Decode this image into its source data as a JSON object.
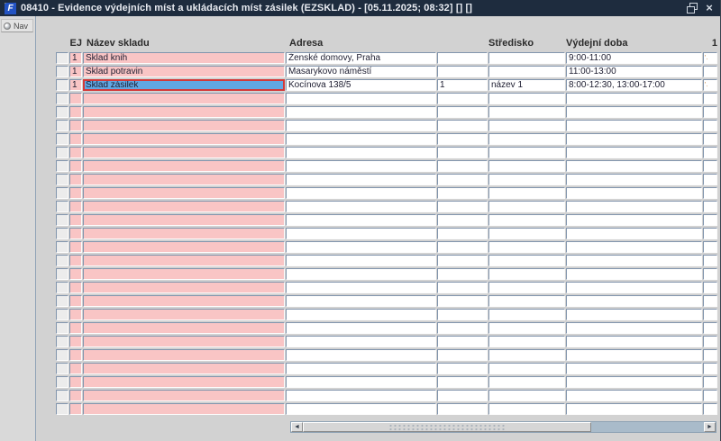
{
  "window": {
    "title": "08410 - Evidence výdejních míst a ukládacích míst zásilek (EZSKLAD) - [05.11.2025; 08:32] [] []",
    "controls": {
      "restore_icon": "restore",
      "close_label": "×"
    }
  },
  "sidebar": {
    "nav_label": "Nav"
  },
  "table": {
    "columns": [
      {
        "key": "sel",
        "label": ""
      },
      {
        "key": "ej",
        "label": "EJ"
      },
      {
        "key": "nazev",
        "label": "Název skladu"
      },
      {
        "key": "adresa",
        "label": "Adresa"
      },
      {
        "key": "stredisko_cislo",
        "label": ""
      },
      {
        "key": "stredisko",
        "label": "Středisko"
      },
      {
        "key": "vydejni_doba",
        "label": "Výdejní doba"
      },
      {
        "key": "last",
        "label": "1"
      }
    ],
    "rows": [
      {
        "ej": "1",
        "nazev": "Sklad knih",
        "adresa": "Ženské domovy, Praha",
        "stredisko_cislo": "",
        "stredisko": "",
        "vydejni_doba": "9:00-11:00",
        "last": "'.",
        "selected": false
      },
      {
        "ej": "1",
        "nazev": "Sklad potravin",
        "adresa": "Masarykovo náměstí",
        "stredisko_cislo": "",
        "stredisko": "",
        "vydejni_doba": "11:00-13:00",
        "last": "",
        "selected": false
      },
      {
        "ej": "1",
        "nazev": "Sklad zásilek",
        "adresa": "Kocínova 138/5",
        "stredisko_cislo": "1",
        "stredisko": "název 1",
        "vydejni_doba": "8:00-12:30, 13:00-17:00",
        "last": "'.",
        "selected": true
      }
    ],
    "empty_row_count": 24
  },
  "scrollbar": {
    "left_arrow": "◄",
    "right_arrow": "►"
  },
  "colors": {
    "titlebar": "#1e2c3e",
    "row_highlight_pink": "#f9c5c5",
    "selected_cell": "#61a7e3",
    "selected_border": "#d33a3a",
    "scroll_track": "#a9bbca"
  }
}
